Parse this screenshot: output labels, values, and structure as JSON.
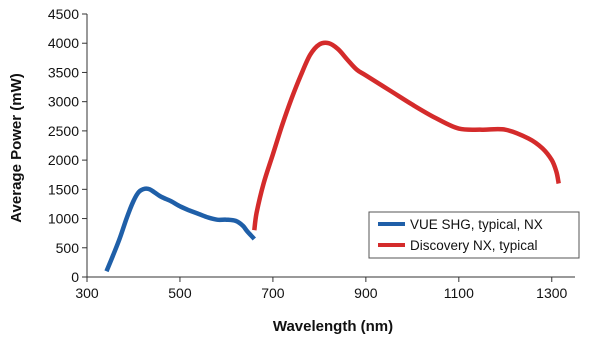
{
  "chart_data": {
    "type": "line",
    "title": "",
    "xlabel": "Wavelength (nm)",
    "ylabel": "Average Power (mW)",
    "xlim": [
      300,
      1350
    ],
    "ylim": [
      0,
      4500
    ],
    "x_ticks": [
      300,
      500,
      700,
      900,
      1100,
      1300
    ],
    "y_ticks": [
      0,
      500,
      1000,
      1500,
      2000,
      2500,
      3000,
      3500,
      4000,
      4500
    ],
    "grid": false,
    "legend_position": "lower-right",
    "series": [
      {
        "name": "VUE SHG, typical, NX",
        "color": "#1f5fa8",
        "x": [
          342,
          355,
          370,
          385,
          400,
          412,
          425,
          435,
          445,
          460,
          480,
          500,
          520,
          540,
          560,
          580,
          600,
          620,
          635,
          645,
          660
        ],
        "y": [
          100,
          350,
          650,
          1000,
          1300,
          1460,
          1510,
          1500,
          1450,
          1370,
          1300,
          1210,
          1140,
          1080,
          1020,
          980,
          980,
          960,
          880,
          780,
          650
        ]
      },
      {
        "name": "Discovery NX, typical",
        "color": "#d42b2b",
        "x": [
          660,
          665,
          680,
          700,
          720,
          740,
          760,
          780,
          800,
          820,
          840,
          860,
          880,
          900,
          950,
          1000,
          1050,
          1100,
          1150,
          1200,
          1250,
          1280,
          1300,
          1310,
          1315
        ],
        "y": [
          800,
          1100,
          1600,
          2100,
          2600,
          3050,
          3450,
          3800,
          3980,
          4000,
          3900,
          3720,
          3550,
          3450,
          3200,
          2950,
          2720,
          2540,
          2520,
          2520,
          2370,
          2200,
          2000,
          1800,
          1600
        ]
      }
    ]
  }
}
